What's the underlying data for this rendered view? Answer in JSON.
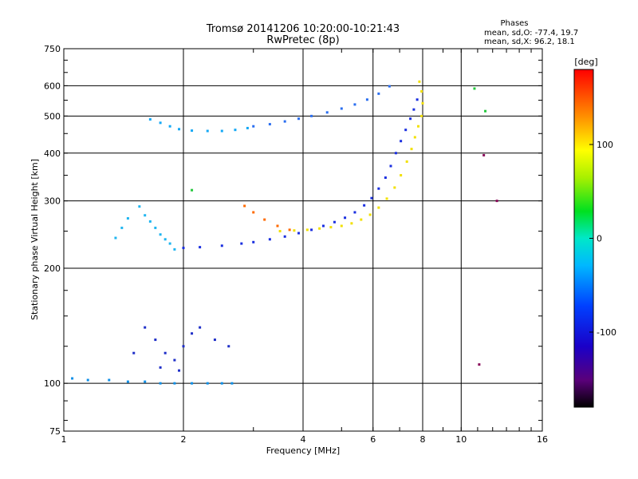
{
  "chart_data": {
    "type": "scatter",
    "title": "Tromsø 20141206 10:20:00-10:21:43",
    "subtitle": "RwPretec (8p)",
    "stats": {
      "header": "Phases",
      "line_o": "mean, sd,O: -77.4, 19.7",
      "line_x": "mean, sd,X:  96.2, 18.1"
    },
    "xlabel": "Frequency [MHz]",
    "ylabel": "Stationary phase Virtual Height [km]",
    "x_scale": "log",
    "y_scale": "log",
    "xlim": [
      1,
      16
    ],
    "ylim": [
      75,
      750
    ],
    "xticks": [
      "1",
      "2",
      "4",
      "6",
      "8",
      "10",
      "16"
    ],
    "yticks": [
      "75",
      "100",
      "200",
      "300",
      "400",
      "500",
      "600",
      "750"
    ],
    "grid": true,
    "colorbar": {
      "label": "[deg]",
      "range": [
        -180,
        180
      ],
      "ticks": [
        "100",
        "0",
        "-100"
      ]
    },
    "series": [
      {
        "phase_deg": -90,
        "color": "#1a2fe0",
        "points": [
          [
            2.0,
            226
          ],
          [
            2.2,
            227
          ],
          [
            2.5,
            229
          ],
          [
            2.8,
            232
          ],
          [
            3.0,
            234
          ],
          [
            3.3,
            238
          ],
          [
            3.6,
            242
          ],
          [
            3.9,
            247
          ],
          [
            4.2,
            252
          ],
          [
            4.5,
            258
          ],
          [
            4.8,
            264
          ],
          [
            5.1,
            271
          ],
          [
            5.4,
            280
          ],
          [
            5.7,
            292
          ],
          [
            5.95,
            305
          ],
          [
            6.2,
            323
          ],
          [
            6.45,
            345
          ],
          [
            6.65,
            370
          ],
          [
            6.85,
            400
          ],
          [
            7.05,
            430
          ],
          [
            7.25,
            460
          ],
          [
            7.45,
            492
          ],
          [
            7.6,
            520
          ],
          [
            7.75,
            552
          ]
        ]
      },
      {
        "phase_deg": 100,
        "color": "#f2e000",
        "points": [
          [
            3.5,
            250
          ],
          [
            3.8,
            251
          ],
          [
            4.1,
            252
          ],
          [
            4.4,
            254
          ],
          [
            4.7,
            256
          ],
          [
            5.0,
            258
          ],
          [
            5.3,
            262
          ],
          [
            5.6,
            268
          ],
          [
            5.9,
            276
          ],
          [
            6.2,
            288
          ],
          [
            6.5,
            304
          ],
          [
            6.8,
            325
          ],
          [
            7.05,
            350
          ],
          [
            7.3,
            380
          ],
          [
            7.5,
            410
          ],
          [
            7.65,
            440
          ],
          [
            7.8,
            470
          ],
          [
            7.95,
            500
          ],
          [
            8.0,
            540
          ],
          [
            7.95,
            580
          ],
          [
            7.85,
            615
          ]
        ]
      },
      {
        "phase_deg": 135,
        "color": "#ff6a00",
        "points": [
          [
            2.85,
            291
          ],
          [
            3.0,
            280
          ],
          [
            3.2,
            268
          ],
          [
            3.45,
            258
          ],
          [
            3.7,
            252
          ]
        ]
      },
      {
        "phase_deg": -55,
        "color": "#14a8f5",
        "points": [
          [
            1.65,
            490
          ],
          [
            1.75,
            480
          ],
          [
            1.85,
            470
          ],
          [
            1.95,
            462
          ],
          [
            2.1,
            458
          ],
          [
            2.3,
            457
          ],
          [
            2.5,
            457
          ],
          [
            2.7,
            460
          ],
          [
            2.9,
            465
          ]
        ]
      },
      {
        "phase_deg": -80,
        "color": "#2a6ef0",
        "points": [
          [
            3.0,
            470
          ],
          [
            3.3,
            476
          ],
          [
            3.6,
            484
          ],
          [
            3.9,
            492
          ],
          [
            4.2,
            500
          ],
          [
            4.6,
            511
          ],
          [
            5.0,
            523
          ],
          [
            5.4,
            536
          ],
          [
            5.8,
            552
          ],
          [
            6.2,
            572
          ],
          [
            6.6,
            598
          ]
        ]
      },
      {
        "phase_deg": -60,
        "color": "#1fb5f0",
        "points": [
          [
            1.55,
            290
          ],
          [
            1.6,
            275
          ],
          [
            1.65,
            265
          ],
          [
            1.7,
            255
          ],
          [
            1.75,
            245
          ],
          [
            1.8,
            238
          ],
          [
            1.35,
            240
          ],
          [
            1.4,
            255
          ],
          [
            1.45,
            270
          ],
          [
            1.85,
            232
          ],
          [
            1.9,
            224
          ]
        ]
      },
      {
        "phase_deg": -70,
        "color": "#1090e8",
        "points": [
          [
            1.05,
            103
          ],
          [
            1.15,
            102
          ],
          [
            1.3,
            102
          ],
          [
            1.45,
            101
          ],
          [
            1.6,
            101
          ],
          [
            1.75,
            100
          ],
          [
            1.9,
            100
          ],
          [
            2.1,
            100
          ],
          [
            2.3,
            100
          ],
          [
            2.5,
            100
          ],
          [
            2.65,
            100
          ]
        ]
      },
      {
        "phase_deg": -95,
        "color": "#1f2fc8",
        "points": [
          [
            1.6,
            140
          ],
          [
            1.7,
            130
          ],
          [
            1.8,
            120
          ],
          [
            1.9,
            115
          ],
          [
            2.0,
            125
          ],
          [
            2.1,
            135
          ],
          [
            1.75,
            110
          ],
          [
            1.95,
            108
          ],
          [
            2.2,
            140
          ],
          [
            2.4,
            130
          ],
          [
            2.6,
            125
          ],
          [
            1.5,
            120
          ]
        ]
      },
      {
        "phase_deg": 40,
        "color": "#23c83c",
        "points": [
          [
            2.1,
            320
          ],
          [
            10.8,
            590
          ],
          [
            11.5,
            515
          ]
        ]
      },
      {
        "phase_deg": -150,
        "color": "#8a0a5a",
        "points": [
          [
            11.4,
            395
          ],
          [
            12.3,
            300
          ],
          [
            11.1,
            112
          ]
        ]
      }
    ]
  }
}
